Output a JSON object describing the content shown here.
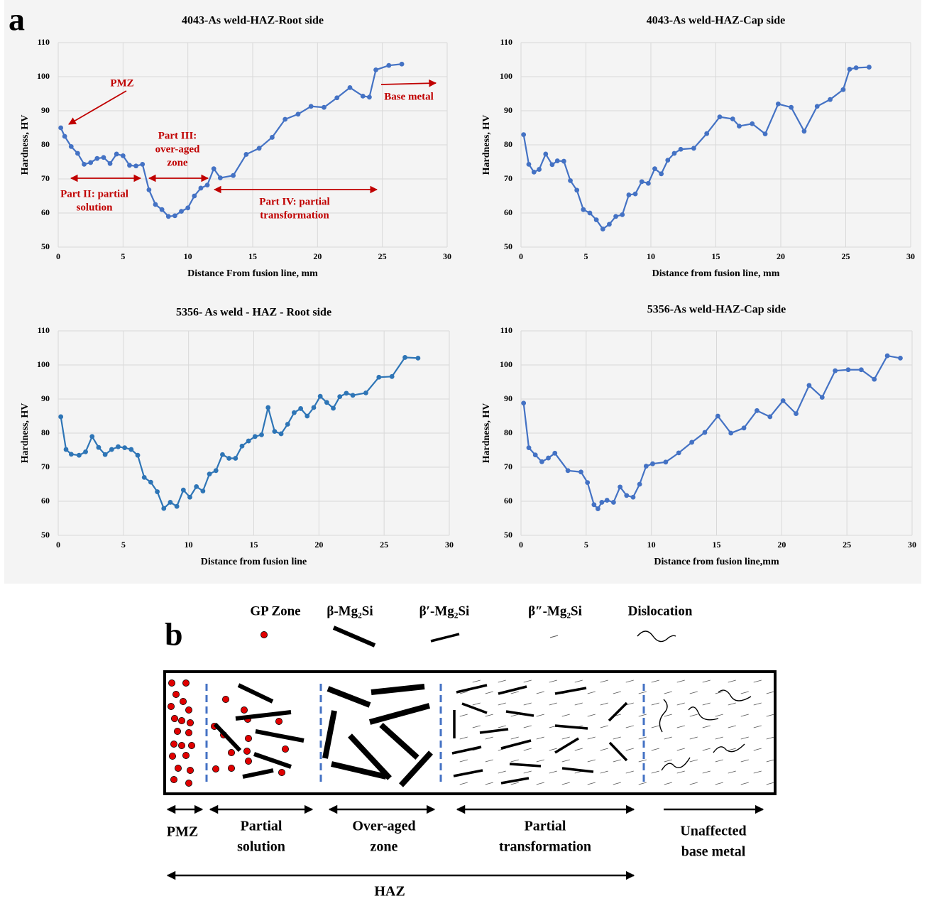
{
  "panel_labels": [
    "a",
    "b"
  ],
  "chart_data": [
    {
      "type": "line",
      "title": "4043-As weld-HAZ-Root side",
      "x_label": "Distance From fusion line, mm",
      "y_label": "Hardness, HV",
      "color": "#4472c4",
      "x": [
        0.2,
        0.5,
        1,
        1.5,
        2,
        2.5,
        3,
        3.5,
        4,
        4.5,
        5,
        5.5,
        6,
        6.5,
        7,
        7.5,
        8,
        8.5,
        9,
        9.5,
        10,
        10.5,
        11,
        11.5,
        12,
        12.5,
        13.5,
        14.5,
        15.5,
        16.5,
        17.5,
        18.5,
        19.5,
        20.5,
        21.5,
        22.5,
        23.5,
        24,
        24.5,
        25.5,
        26.5
      ],
      "values": [
        85,
        82.5,
        79.5,
        77.5,
        74.3,
        74.8,
        76,
        76.3,
        74.5,
        77.3,
        76.8,
        74,
        73.8,
        74.3,
        66.8,
        62.5,
        61,
        59,
        59.2,
        60.5,
        61.5,
        65,
        67.3,
        68.2,
        73,
        70.3,
        71,
        77.2,
        79,
        82.2,
        87.5,
        89,
        91.3,
        91,
        93.8,
        96.8,
        94.3,
        94,
        102,
        103.3,
        103.7
      ],
      "xlim": [
        0,
        30
      ],
      "ylim": [
        50,
        110
      ],
      "xticks": [
        0,
        5,
        10,
        15,
        20,
        25,
        30
      ],
      "yticks": [
        50,
        60,
        70,
        80,
        90,
        100,
        110
      ],
      "grid": true,
      "annotations": [
        {
          "lines": [
            "PMZ"
          ]
        },
        {
          "lines": [
            "Part II: partial",
            "solution"
          ]
        },
        {
          "lines": [
            "Part III:",
            "over-aged",
            "zone"
          ]
        },
        {
          "lines": [
            "Part IV: partial",
            "transformation"
          ]
        },
        {
          "lines": [
            "Base metal"
          ]
        }
      ],
      "annotation_color": "#c00000"
    },
    {
      "type": "line",
      "title": "4043-As weld-HAZ-Cap side",
      "x_label": "Distance from fusion line, mm",
      "y_label": "Hardness, HV",
      "color": "#4472c4",
      "x": [
        0.2,
        0.6,
        1,
        1.4,
        1.9,
        2.4,
        2.8,
        3.3,
        3.8,
        4.3,
        4.8,
        5.3,
        5.8,
        6.3,
        6.8,
        7.3,
        7.8,
        8.3,
        8.8,
        9.3,
        9.8,
        10.3,
        10.8,
        11.3,
        11.8,
        12.3,
        13.3,
        14.3,
        15.3,
        16.3,
        16.8,
        17.8,
        18.8,
        19.8,
        20.8,
        21.8,
        22.8,
        23.8,
        24.8,
        25.3,
        25.8,
        26.8
      ],
      "values": [
        83,
        74.3,
        72,
        72.8,
        77.3,
        74.2,
        75.3,
        75.2,
        69.5,
        66.7,
        61,
        60,
        58,
        55.3,
        56.7,
        59,
        59.5,
        65.3,
        65.6,
        69.2,
        68.7,
        73,
        71.5,
        75.5,
        77.5,
        78.7,
        79,
        83.3,
        88.2,
        87.6,
        85.5,
        86.2,
        83.2,
        92,
        91,
        84,
        91.3,
        93.3,
        96.2,
        102.2,
        102.6,
        102.8
      ],
      "xlim": [
        0,
        30
      ],
      "ylim": [
        50,
        110
      ],
      "xticks": [
        0,
        5,
        10,
        15,
        20,
        25,
        30
      ],
      "yticks": [
        50,
        60,
        70,
        80,
        90,
        100,
        110
      ],
      "grid": true
    },
    {
      "type": "line",
      "title": "5356- As weld - HAZ - Root side",
      "x_label": "Distance from fusion line",
      "y_label": "Hardness, HV",
      "color": "#2e75b6",
      "x": [
        0.2,
        0.6,
        1,
        1.6,
        2.1,
        2.6,
        3.1,
        3.6,
        4.1,
        4.6,
        5.1,
        5.6,
        6.1,
        6.6,
        7.1,
        7.6,
        8.1,
        8.6,
        9.1,
        9.6,
        10.1,
        10.6,
        11.1,
        11.6,
        12.1,
        12.6,
        13.1,
        13.6,
        14.1,
        14.6,
        15.1,
        15.6,
        16.1,
        16.6,
        17.1,
        17.6,
        18.1,
        18.6,
        19.1,
        19.6,
        20.1,
        20.6,
        21.1,
        21.6,
        22.1,
        22.6,
        23.6,
        24.6,
        25.6,
        26.6,
        27.6
      ],
      "values": [
        84.8,
        75.2,
        73.8,
        73.5,
        74.5,
        79,
        75.8,
        73.7,
        75.2,
        76,
        75.7,
        75.2,
        73.5,
        67,
        65.6,
        62.8,
        57.9,
        59.7,
        58.5,
        63.3,
        61.2,
        64.3,
        63,
        68,
        69,
        73.7,
        72.6,
        72.6,
        76.2,
        77.7,
        79,
        79.5,
        87.5,
        80.5,
        79.8,
        82.6,
        86,
        87.2,
        85,
        87.5,
        90.8,
        89,
        87.3,
        90.7,
        91.7,
        91.1,
        91.8,
        96.4,
        96.6,
        102.2,
        102
      ],
      "xlim": [
        0,
        30
      ],
      "ylim": [
        50,
        110
      ],
      "xticks": [
        0,
        5,
        10,
        15,
        20,
        25,
        30
      ],
      "yticks": [
        50,
        60,
        70,
        80,
        90,
        100,
        110
      ],
      "grid": true
    },
    {
      "type": "line",
      "title": "5356-As weld-HAZ-Cap side",
      "x_label": "Distance from fusion line,mm",
      "y_label": "Hardness, HV",
      "color": "#4472c4",
      "x": [
        0.2,
        0.6,
        1.1,
        1.6,
        2.1,
        2.6,
        3.6,
        4.6,
        5.1,
        5.6,
        5.9,
        6.2,
        6.6,
        7.1,
        7.6,
        8.1,
        8.6,
        9.1,
        9.6,
        10.1,
        11.1,
        12.1,
        13.1,
        14.1,
        15.1,
        16.1,
        17.1,
        18.1,
        19.1,
        20.1,
        21.1,
        22.1,
        23.1,
        24.1,
        25.1,
        26.1,
        27.1,
        28.1,
        29.1
      ],
      "values": [
        88.8,
        75.7,
        73.6,
        71.6,
        72.7,
        74.1,
        69,
        68.6,
        65.5,
        59,
        57.8,
        59.7,
        60.3,
        59.7,
        64.2,
        61.7,
        61.2,
        65,
        70.3,
        71,
        71.5,
        74.2,
        77.3,
        80.2,
        85,
        80,
        81.5,
        86.6,
        84.8,
        89.5,
        85.7,
        94,
        90.5,
        98.3,
        98.6,
        98.6,
        95.8,
        102.7,
        102
      ],
      "xlim": [
        0,
        30
      ],
      "ylim": [
        50,
        110
      ],
      "xticks": [
        0,
        5,
        10,
        15,
        20,
        25,
        30
      ],
      "yticks": [
        50,
        60,
        70,
        80,
        90,
        100,
        110
      ],
      "grid": true
    }
  ],
  "diagram": {
    "legend": [
      "GP Zone",
      "β-Mg₂Si",
      "β′-Mg₂Si",
      "β″-Mg₂Si",
      "Dislocation"
    ],
    "zones": [
      {
        "lines": [
          "PMZ"
        ]
      },
      {
        "lines": [
          "Partial",
          "solution"
        ]
      },
      {
        "lines": [
          "Over-aged",
          "zone"
        ]
      },
      {
        "lines": [
          "Partial",
          "transformation"
        ]
      },
      {
        "lines": [
          "Unaffected",
          "base metal"
        ]
      }
    ],
    "haz": "HAZ"
  }
}
